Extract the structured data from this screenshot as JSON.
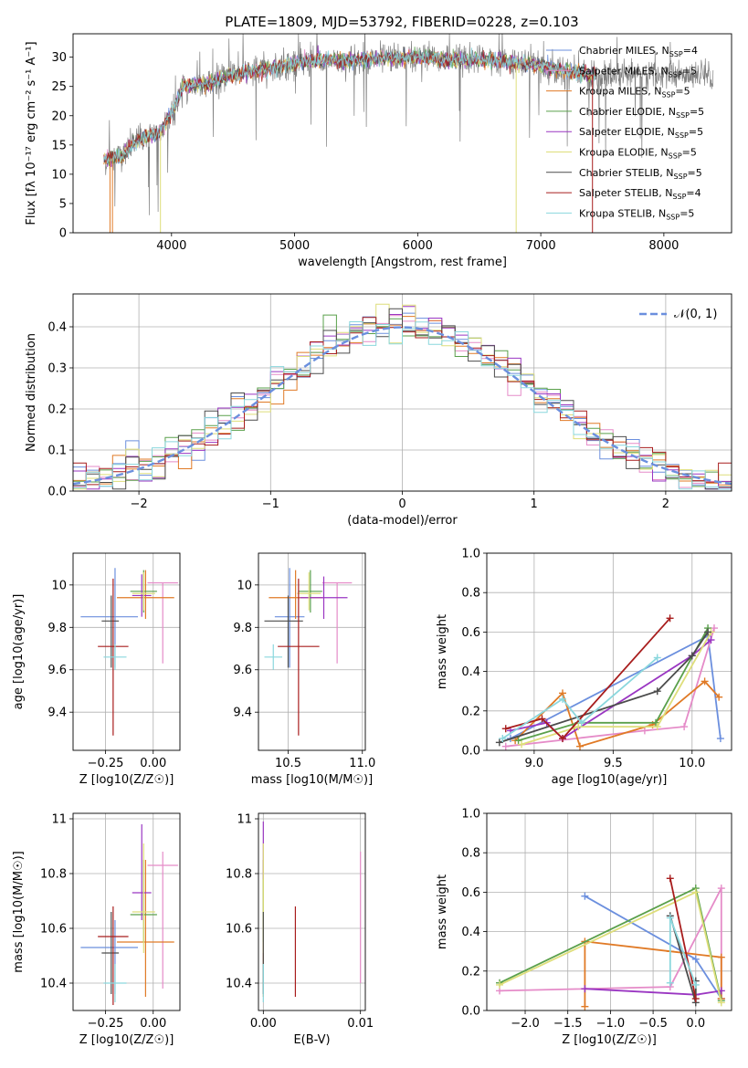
{
  "figure": {
    "title": "PLATE=1809, MJD=53792, FIBERID=0228, z=0.103"
  },
  "colors": {
    "series": [
      "#6b8fde",
      "#e58bc8",
      "#e07a26",
      "#5aa04b",
      "#9a36c2",
      "#dede7a",
      "#4c4c4c",
      "#a81d1d",
      "#8ad7dd"
    ],
    "grid": "#b0b0b0",
    "model_line": "#6b8fde"
  },
  "series_names": [
    "Chabrier MILES, N_SSP=4",
    "Salpeter MILES, N_SSP=5",
    "Kroupa MILES, N_SSP=5",
    "Chabrier ELODIE, N_SSP=5",
    "Salpeter ELODIE, N_SSP=5",
    "Kroupa ELODIE, N_SSP=5",
    "Chabrier STELIB, N_SSP=5",
    "Salpeter STELIB, N_SSP=4",
    "Kroupa STELIB, N_SSP=5"
  ],
  "chart_data": [
    {
      "id": "spectrum",
      "type": "line",
      "xlabel": "wavelength [Angstrom, rest frame]",
      "ylabel": "Flux [fλ 10⁻¹⁷ erg cm⁻² s⁻¹ A⁻¹]",
      "xlim": [
        3200,
        8550
      ],
      "ylim": [
        0,
        34
      ],
      "xticks": [
        4000,
        5000,
        6000,
        7000,
        8000
      ],
      "yticks": [
        0,
        5,
        10,
        15,
        20,
        25,
        30
      ],
      "continuum_knots": [
        [
          3450,
          12.5
        ],
        [
          3600,
          13
        ],
        [
          3700,
          15.5
        ],
        [
          3800,
          16.5
        ],
        [
          3900,
          17
        ],
        [
          4000,
          20.5
        ],
        [
          4100,
          25
        ],
        [
          4300,
          25.5
        ],
        [
          4500,
          27
        ],
        [
          4800,
          28
        ],
        [
          5000,
          29
        ],
        [
          5200,
          29.5
        ],
        [
          5500,
          29.5
        ],
        [
          5800,
          30
        ],
        [
          6000,
          30
        ],
        [
          6300,
          29.5
        ],
        [
          6600,
          29.5
        ],
        [
          7000,
          28.5
        ],
        [
          7400,
          27
        ],
        [
          7500,
          27
        ]
      ],
      "data_range": [
        3450,
        8400
      ],
      "data_range_models": [
        3450,
        7450
      ],
      "legend": [
        "Chabrier MILES, N_SSP=4",
        "Salpeter MILES, N_SSP=5",
        "Kroupa MILES, N_SSP=5",
        "Chabrier ELODIE, N_SSP=5",
        "Salpeter ELODIE, N_SSP=5",
        "Kroupa ELODIE, N_SSP=5",
        "Chabrier STELIB, N_SSP=5",
        "Salpeter STELIB, N_SSP=4",
        "Kroupa STELIB, N_SSP=5"
      ]
    },
    {
      "id": "residuals",
      "type": "histogram",
      "xlabel": "(data-model)/error",
      "ylabel": "Normed distribution",
      "xlim": [
        -2.5,
        2.5
      ],
      "ylim": [
        0,
        0.48
      ],
      "xticks": [
        -2,
        -1,
        0,
        1,
        2
      ],
      "yticks": [
        0.0,
        0.1,
        0.2,
        0.3,
        0.4
      ],
      "bin_width": 0.1,
      "reference": {
        "name": "𝒩(0, 1)",
        "mean": 0,
        "sigma": 1
      }
    },
    {
      "id": "age_vs_Z",
      "type": "scatter",
      "xlabel": "Z [log10(Z/Z☉)]",
      "ylabel": "age [log10(age/yr)]",
      "xlim": [
        -0.42,
        0.14
      ],
      "ylim": [
        9.22,
        10.15
      ],
      "xticks": [
        -0.25,
        0.0
      ],
      "xtick_labels": [
        "−0.25",
        "0.00"
      ],
      "yticks": [
        9.4,
        9.6,
        9.8,
        10.0
      ],
      "points": [
        {
          "x": -0.2,
          "y": 9.85,
          "xerr": [
            0.18,
            0.12
          ],
          "yerr": [
            0.24,
            0.23
          ],
          "color": 0
        },
        {
          "x": 0.05,
          "y": 10.01,
          "xerr": [
            0.08,
            0.08
          ],
          "yerr": [
            0.38,
            0.0
          ],
          "color": 1
        },
        {
          "x": -0.04,
          "y": 9.94,
          "xerr": [
            0.15,
            0.15
          ],
          "yerr": [
            0.1,
            0.13
          ],
          "color": 2
        },
        {
          "x": -0.05,
          "y": 9.97,
          "xerr": [
            0.07,
            0.07
          ],
          "yerr": [
            0.1,
            0.1
          ],
          "color": 3
        },
        {
          "x": -0.06,
          "y": 9.95,
          "xerr": [
            0.05,
            0.05
          ],
          "yerr": [
            0.1,
            0.1
          ],
          "color": 4
        },
        {
          "x": -0.05,
          "y": 9.96,
          "xerr": [
            0.06,
            0.06
          ],
          "yerr": [
            0.08,
            0.1
          ],
          "color": 5
        },
        {
          "x": -0.22,
          "y": 9.83,
          "xerr": [
            0.05,
            0.04
          ],
          "yerr": [
            0.22,
            0.12
          ],
          "color": 6
        },
        {
          "x": -0.21,
          "y": 9.71,
          "xerr": [
            0.08,
            0.08
          ],
          "yerr": [
            0.42,
            0.32
          ],
          "color": 7
        },
        {
          "x": -0.2,
          "y": 9.66,
          "xerr": [
            0.06,
            0.06
          ],
          "yerr": [
            0.06,
            0.06
          ],
          "color": 8
        }
      ]
    },
    {
      "id": "age_vs_mass",
      "type": "scatter",
      "xlabel": "mass [log10(M/M☉)]",
      "ylabel": "",
      "xlim": [
        10.3,
        11.02
      ],
      "ylim": [
        9.22,
        10.15
      ],
      "xticks": [
        10.5,
        11.0
      ],
      "xtick_labels": [
        "10.5",
        "11.0"
      ],
      "yticks": [
        9.4,
        9.6,
        9.8,
        10.0
      ],
      "points": [
        {
          "x": 10.51,
          "y": 9.85,
          "xerr": [
            0.1,
            0.1
          ],
          "yerr": [
            0.24,
            0.23
          ],
          "color": 0
        },
        {
          "x": 10.83,
          "y": 10.01,
          "xerr": [
            0.1,
            0.1
          ],
          "yerr": [
            0.38,
            0.0
          ],
          "color": 1
        },
        {
          "x": 10.55,
          "y": 9.94,
          "xerr": [
            0.18,
            0.18
          ],
          "yerr": [
            0.1,
            0.13
          ],
          "color": 2
        },
        {
          "x": 10.65,
          "y": 9.97,
          "xerr": [
            0.08,
            0.08
          ],
          "yerr": [
            0.1,
            0.1
          ],
          "color": 3
        },
        {
          "x": 10.74,
          "y": 9.94,
          "xerr": [
            0.16,
            0.16
          ],
          "yerr": [
            0.1,
            0.1
          ],
          "color": 4
        },
        {
          "x": 10.64,
          "y": 9.96,
          "xerr": [
            0.08,
            0.08
          ],
          "yerr": [
            0.08,
            0.1
          ],
          "color": 5
        },
        {
          "x": 10.5,
          "y": 9.83,
          "xerr": [
            0.16,
            0.1
          ],
          "yerr": [
            0.22,
            0.12
          ],
          "color": 6
        },
        {
          "x": 10.57,
          "y": 9.71,
          "xerr": [
            0.14,
            0.14
          ],
          "yerr": [
            0.42,
            0.32
          ],
          "color": 7
        },
        {
          "x": 10.4,
          "y": 9.66,
          "xerr": [
            0.06,
            0.06
          ],
          "yerr": [
            0.06,
            0.06
          ],
          "color": 8
        }
      ]
    },
    {
      "id": "mass_weight_vs_age",
      "type": "line",
      "xlabel": "age [log10(age/yr)]",
      "ylabel": "mass weight",
      "xlim": [
        8.7,
        10.25
      ],
      "ylim": [
        0,
        1.0
      ],
      "xticks": [
        9.0,
        9.5,
        10.0
      ],
      "xtick_labels": [
        "9.0",
        "9.5",
        "10.0"
      ],
      "yticks": [
        0.0,
        0.2,
        0.4,
        0.6,
        0.8,
        1.0
      ],
      "series": [
        {
          "color": 0,
          "points": [
            [
              8.85,
              0.06
            ],
            [
              10.1,
              0.58
            ],
            [
              10.18,
              0.06
            ]
          ]
        },
        {
          "color": 1,
          "points": [
            [
              8.82,
              0.02
            ],
            [
              9.7,
              0.1
            ],
            [
              9.95,
              0.12
            ],
            [
              10.14,
              0.62
            ]
          ]
        },
        {
          "color": 2,
          "points": [
            [
              8.88,
              0.05
            ],
            [
              9.18,
              0.29
            ],
            [
              9.29,
              0.02
            ],
            [
              9.75,
              0.13
            ],
            [
              10.08,
              0.35
            ],
            [
              10.17,
              0.27
            ]
          ]
        },
        {
          "color": 3,
          "points": [
            [
              8.9,
              0.05
            ],
            [
              9.28,
              0.14
            ],
            [
              9.77,
              0.14
            ],
            [
              10.1,
              0.62
            ]
          ]
        },
        {
          "color": 4,
          "points": [
            [
              8.85,
              0.1
            ],
            [
              9.08,
              0.14
            ],
            [
              9.18,
              0.06
            ],
            [
              10.0,
              0.48
            ],
            [
              10.12,
              0.56
            ]
          ]
        },
        {
          "color": 5,
          "points": [
            [
              8.92,
              0.03
            ],
            [
              9.28,
              0.12
            ],
            [
              9.78,
              0.12
            ],
            [
              10.12,
              0.6
            ]
          ]
        },
        {
          "color": 6,
          "points": [
            [
              8.78,
              0.04
            ],
            [
              9.78,
              0.3
            ],
            [
              10.0,
              0.48
            ],
            [
              10.1,
              0.6
            ]
          ]
        },
        {
          "color": 7,
          "points": [
            [
              8.82,
              0.11
            ],
            [
              9.05,
              0.16
            ],
            [
              9.18,
              0.06
            ],
            [
              9.86,
              0.67
            ]
          ]
        },
        {
          "color": 8,
          "points": [
            [
              8.8,
              0.06
            ],
            [
              9.18,
              0.26
            ],
            [
              9.3,
              0.14
            ],
            [
              9.78,
              0.47
            ]
          ]
        }
      ]
    },
    {
      "id": "mass_vs_Z",
      "type": "scatter",
      "xlabel": "Z [log10(Z/Z☉)]",
      "ylabel": "mass [log10(M/M☉)]",
      "xlim": [
        -0.42,
        0.14
      ],
      "ylim": [
        10.3,
        11.02
      ],
      "xticks": [
        -0.25,
        0.0
      ],
      "xtick_labels": [
        "−0.25",
        "0.00"
      ],
      "yticks": [
        10.4,
        10.6,
        10.8,
        11.0
      ],
      "points": [
        {
          "x": -0.2,
          "y": 10.53,
          "xerr": [
            0.18,
            0.12
          ],
          "yerr": [
            0.17,
            0.1
          ],
          "color": 0
        },
        {
          "x": 0.05,
          "y": 10.83,
          "xerr": [
            0.08,
            0.08
          ],
          "yerr": [
            0.45,
            0.05
          ],
          "color": 1
        },
        {
          "x": -0.04,
          "y": 10.55,
          "xerr": [
            0.15,
            0.15
          ],
          "yerr": [
            0.2,
            0.3
          ],
          "color": 2
        },
        {
          "x": -0.05,
          "y": 10.65,
          "xerr": [
            0.07,
            0.07
          ],
          "yerr": [
            0.1,
            0.2
          ],
          "color": 3
        },
        {
          "x": -0.06,
          "y": 10.73,
          "xerr": [
            0.05,
            0.05
          ],
          "yerr": [
            0.1,
            0.25
          ],
          "color": 4
        },
        {
          "x": -0.05,
          "y": 10.66,
          "xerr": [
            0.06,
            0.06
          ],
          "yerr": [
            0.15,
            0.25
          ],
          "color": 5
        },
        {
          "x": -0.22,
          "y": 10.51,
          "xerr": [
            0.05,
            0.04
          ],
          "yerr": [
            0.15,
            0.15
          ],
          "color": 6
        },
        {
          "x": -0.21,
          "y": 10.57,
          "xerr": [
            0.08,
            0.08
          ],
          "yerr": [
            0.25,
            0.11
          ],
          "color": 7
        },
        {
          "x": -0.2,
          "y": 10.4,
          "xerr": [
            0.06,
            0.06
          ],
          "yerr": [
            0.07,
            0.07
          ],
          "color": 8
        }
      ]
    },
    {
      "id": "mass_vs_ebv",
      "type": "scatter",
      "xlabel": "E(B-V)",
      "ylabel": "",
      "xlim": [
        -0.0005,
        0.0105
      ],
      "ylim": [
        10.3,
        11.02
      ],
      "xticks": [
        0.0,
        0.01
      ],
      "xtick_labels": [
        "0.00",
        "0.01"
      ],
      "yticks": [
        10.4,
        10.6,
        10.8,
        11.0
      ],
      "points": [
        {
          "x": 0.0,
          "y": 10.53,
          "xerr": [
            0,
            0
          ],
          "yerr": [
            0.17,
            0.1
          ],
          "color": 0
        },
        {
          "x": 0.01,
          "y": 10.7,
          "xerr": [
            0,
            0
          ],
          "yerr": [
            0.3,
            0.18
          ],
          "color": 1
        },
        {
          "x": 0.0,
          "y": 10.55,
          "xerr": [
            0,
            0
          ],
          "yerr": [
            0.2,
            0.3
          ],
          "color": 2
        },
        {
          "x": 0.0,
          "y": 10.65,
          "xerr": [
            0,
            0
          ],
          "yerr": [
            0.1,
            0.2
          ],
          "color": 3
        },
        {
          "x": 0.0,
          "y": 10.85,
          "xerr": [
            0,
            0
          ],
          "yerr": [
            0.07,
            0.14
          ],
          "color": 4
        },
        {
          "x": 0.0,
          "y": 10.66,
          "xerr": [
            0,
            0
          ],
          "yerr": [
            0.15,
            0.25
          ],
          "color": 5
        },
        {
          "x": 0.0,
          "y": 10.51,
          "xerr": [
            0,
            0
          ],
          "yerr": [
            0.15,
            0.15
          ],
          "color": 6
        },
        {
          "x": 0.0033,
          "y": 10.52,
          "xerr": [
            0,
            0
          ],
          "yerr": [
            0.17,
            0.16
          ],
          "color": 7
        },
        {
          "x": 0.0,
          "y": 10.4,
          "xerr": [
            0,
            0
          ],
          "yerr": [
            0.07,
            0.07
          ],
          "color": 8
        }
      ]
    },
    {
      "id": "mass_weight_vs_Z",
      "type": "line",
      "xlabel": "Z [log10(Z/Z☉)]",
      "ylabel": "mass weight",
      "xlim": [
        -2.45,
        0.42
      ],
      "ylim": [
        0,
        1.0
      ],
      "xticks": [
        -2.0,
        -1.5,
        -1.0,
        -0.5,
        0.0
      ],
      "xtick_labels": [
        "−2.0",
        "−1.5",
        "−1.0",
        "−0.5",
        "0.0"
      ],
      "yticks": [
        0.0,
        0.2,
        0.4,
        0.6,
        0.8,
        1.0
      ],
      "series": [
        {
          "color": 0,
          "points": [
            [
              -1.3,
              0.58
            ],
            [
              0.0,
              0.26
            ],
            [
              0.3,
              0.06
            ]
          ]
        },
        {
          "color": 1,
          "points": [
            [
              -2.3,
              0.1
            ],
            [
              -0.3,
              0.12
            ],
            [
              0.3,
              0.62
            ],
            [
              0.3,
              0.06
            ]
          ]
        },
        {
          "color": 2,
          "points": [
            [
              -1.3,
              0.02
            ],
            [
              -1.3,
              0.35
            ],
            [
              -0.3,
              0.3
            ],
            [
              0.3,
              0.27
            ],
            [
              0.3,
              0.06
            ]
          ]
        },
        {
          "color": 3,
          "points": [
            [
              -2.3,
              0.14
            ],
            [
              0.0,
              0.62
            ],
            [
              0.3,
              0.05
            ]
          ]
        },
        {
          "color": 4,
          "points": [
            [
              -1.3,
              0.11
            ],
            [
              0.0,
              0.08
            ],
            [
              0.3,
              0.1
            ]
          ]
        },
        {
          "color": 5,
          "points": [
            [
              -2.3,
              0.13
            ],
            [
              0.0,
              0.6
            ],
            [
              0.3,
              0.04
            ]
          ]
        },
        {
          "color": 6,
          "points": [
            [
              -0.3,
              0.48
            ],
            [
              0.0,
              0.04
            ],
            [
              0.0,
              0.15
            ]
          ]
        },
        {
          "color": 7,
          "points": [
            [
              -0.3,
              0.67
            ],
            [
              0.0,
              0.06
            ]
          ]
        },
        {
          "color": 8,
          "points": [
            [
              -0.3,
              0.14
            ],
            [
              -0.3,
              0.47
            ],
            [
              0.0,
              0.13
            ]
          ]
        }
      ]
    }
  ]
}
